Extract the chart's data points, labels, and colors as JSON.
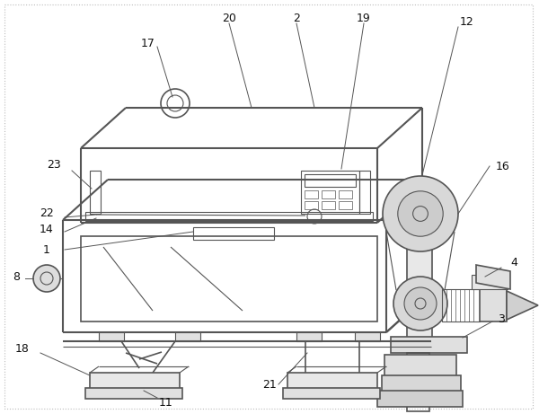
{
  "background_color": "#ffffff",
  "line_color": "#555555",
  "label_color": "#111111",
  "figsize": [
    6.0,
    4.61
  ],
  "dpi": 100,
  "border_color": "#aaaaaa"
}
